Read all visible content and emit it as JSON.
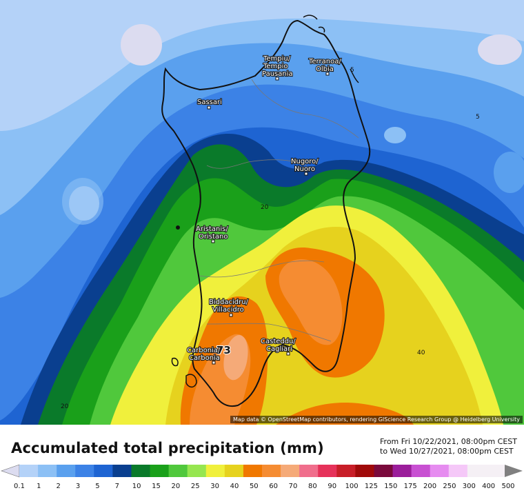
{
  "map": {
    "cities": [
      {
        "name_line1": "Tempiu/",
        "name_line2": "Tempio",
        "name_line3": "Pausania"
      },
      {
        "name_line1": "Terranoa/",
        "name_line2": "Olbia"
      },
      {
        "name_line1": "Sassari"
      },
      {
        "name_line1": "Nugoro/",
        "name_line2": "Nuoro"
      },
      {
        "name_line1": "Aristanis/",
        "name_line2": "Oristano"
      },
      {
        "name_line1": "Biddacidru/",
        "name_line2": "Villacidro"
      },
      {
        "name_line1": "Carbonia/",
        "name_line2": "Carbonia"
      },
      {
        "name_line1": "Casteddu/",
        "name_line2": "Cagliari"
      }
    ],
    "contour_labels": [
      "5",
      "5",
      "20",
      "40",
      "20"
    ],
    "max_value_label": "73",
    "attribution": "Map data © OpenStreetMap contributors, rendering GIScience Research Group @ Heidelberg University"
  },
  "legend": {
    "title": "Accumulated total precipitation (mm)",
    "period_line1": "From Fri 10/22/2021, 08:00pm CEST",
    "period_line2": "to Wed 10/27/2021, 08:00pm CEST",
    "ticks": [
      "0.1",
      "1",
      "2",
      "3",
      "5",
      "7",
      "10",
      "15",
      "20",
      "25",
      "30",
      "40",
      "50",
      "60",
      "70",
      "80",
      "90",
      "100",
      "125",
      "150",
      "175",
      "200",
      "250",
      "300",
      "400",
      "500"
    ],
    "colors": [
      "#dcdcf0",
      "#b4d2f8",
      "#8cc0f5",
      "#5aa0ee",
      "#3c82e6",
      "#1e64d2",
      "#0a3f8f",
      "#0a7a2a",
      "#1aa01a",
      "#50c83c",
      "#96e650",
      "#f0f03c",
      "#e6d21e",
      "#f07800",
      "#f58c32",
      "#f5aa78",
      "#f06e8c",
      "#e6325a",
      "#c81e28",
      "#a00a0a",
      "#7a0a3c",
      "#9b1e9b",
      "#c850d2",
      "#e68cf0",
      "#f5c8f8",
      "#f5f0f5",
      "#c8c8c8"
    ]
  }
}
